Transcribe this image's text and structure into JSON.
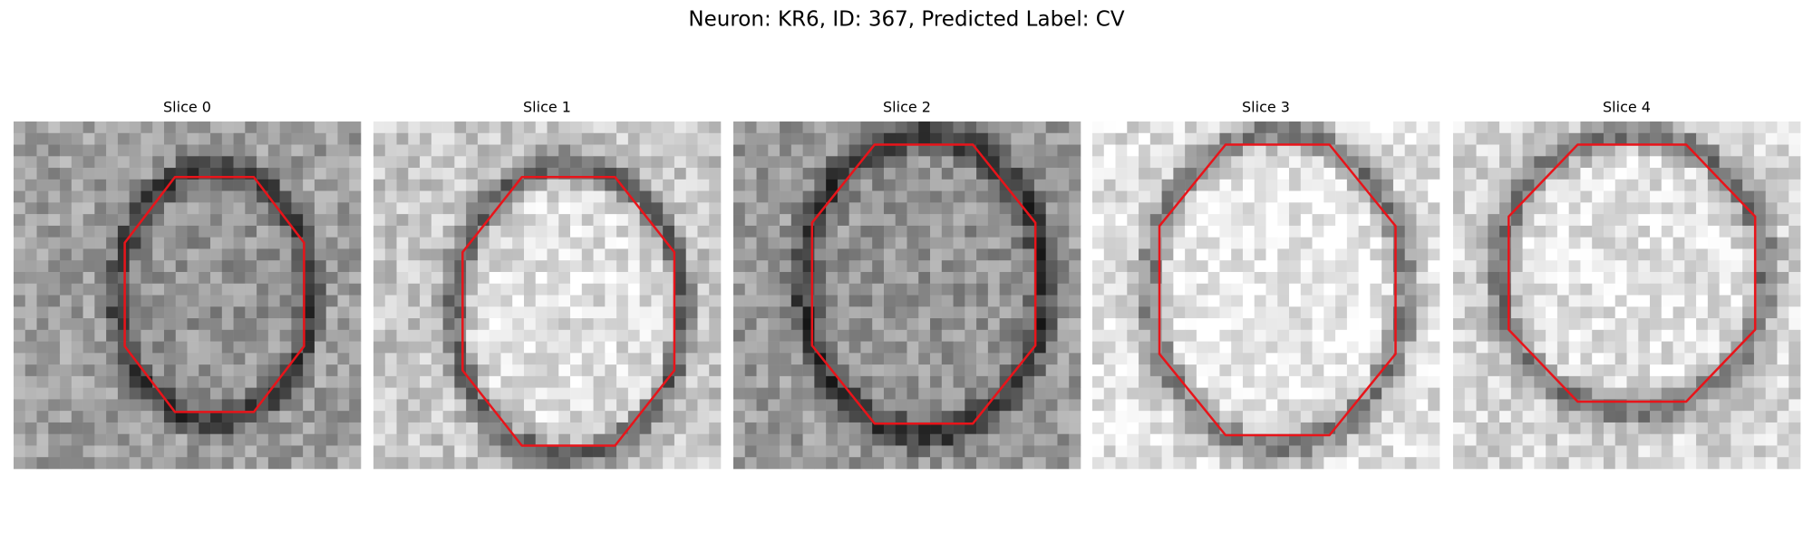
{
  "title": "Neuron: KR6, ID: 367, Predicted Label: CV",
  "panels": [
    {
      "title": "Slice 0"
    },
    {
      "title": "Slice 1"
    },
    {
      "title": "Slice 2"
    },
    {
      "title": "Slice 3"
    },
    {
      "title": "Slice 4"
    }
  ]
}
